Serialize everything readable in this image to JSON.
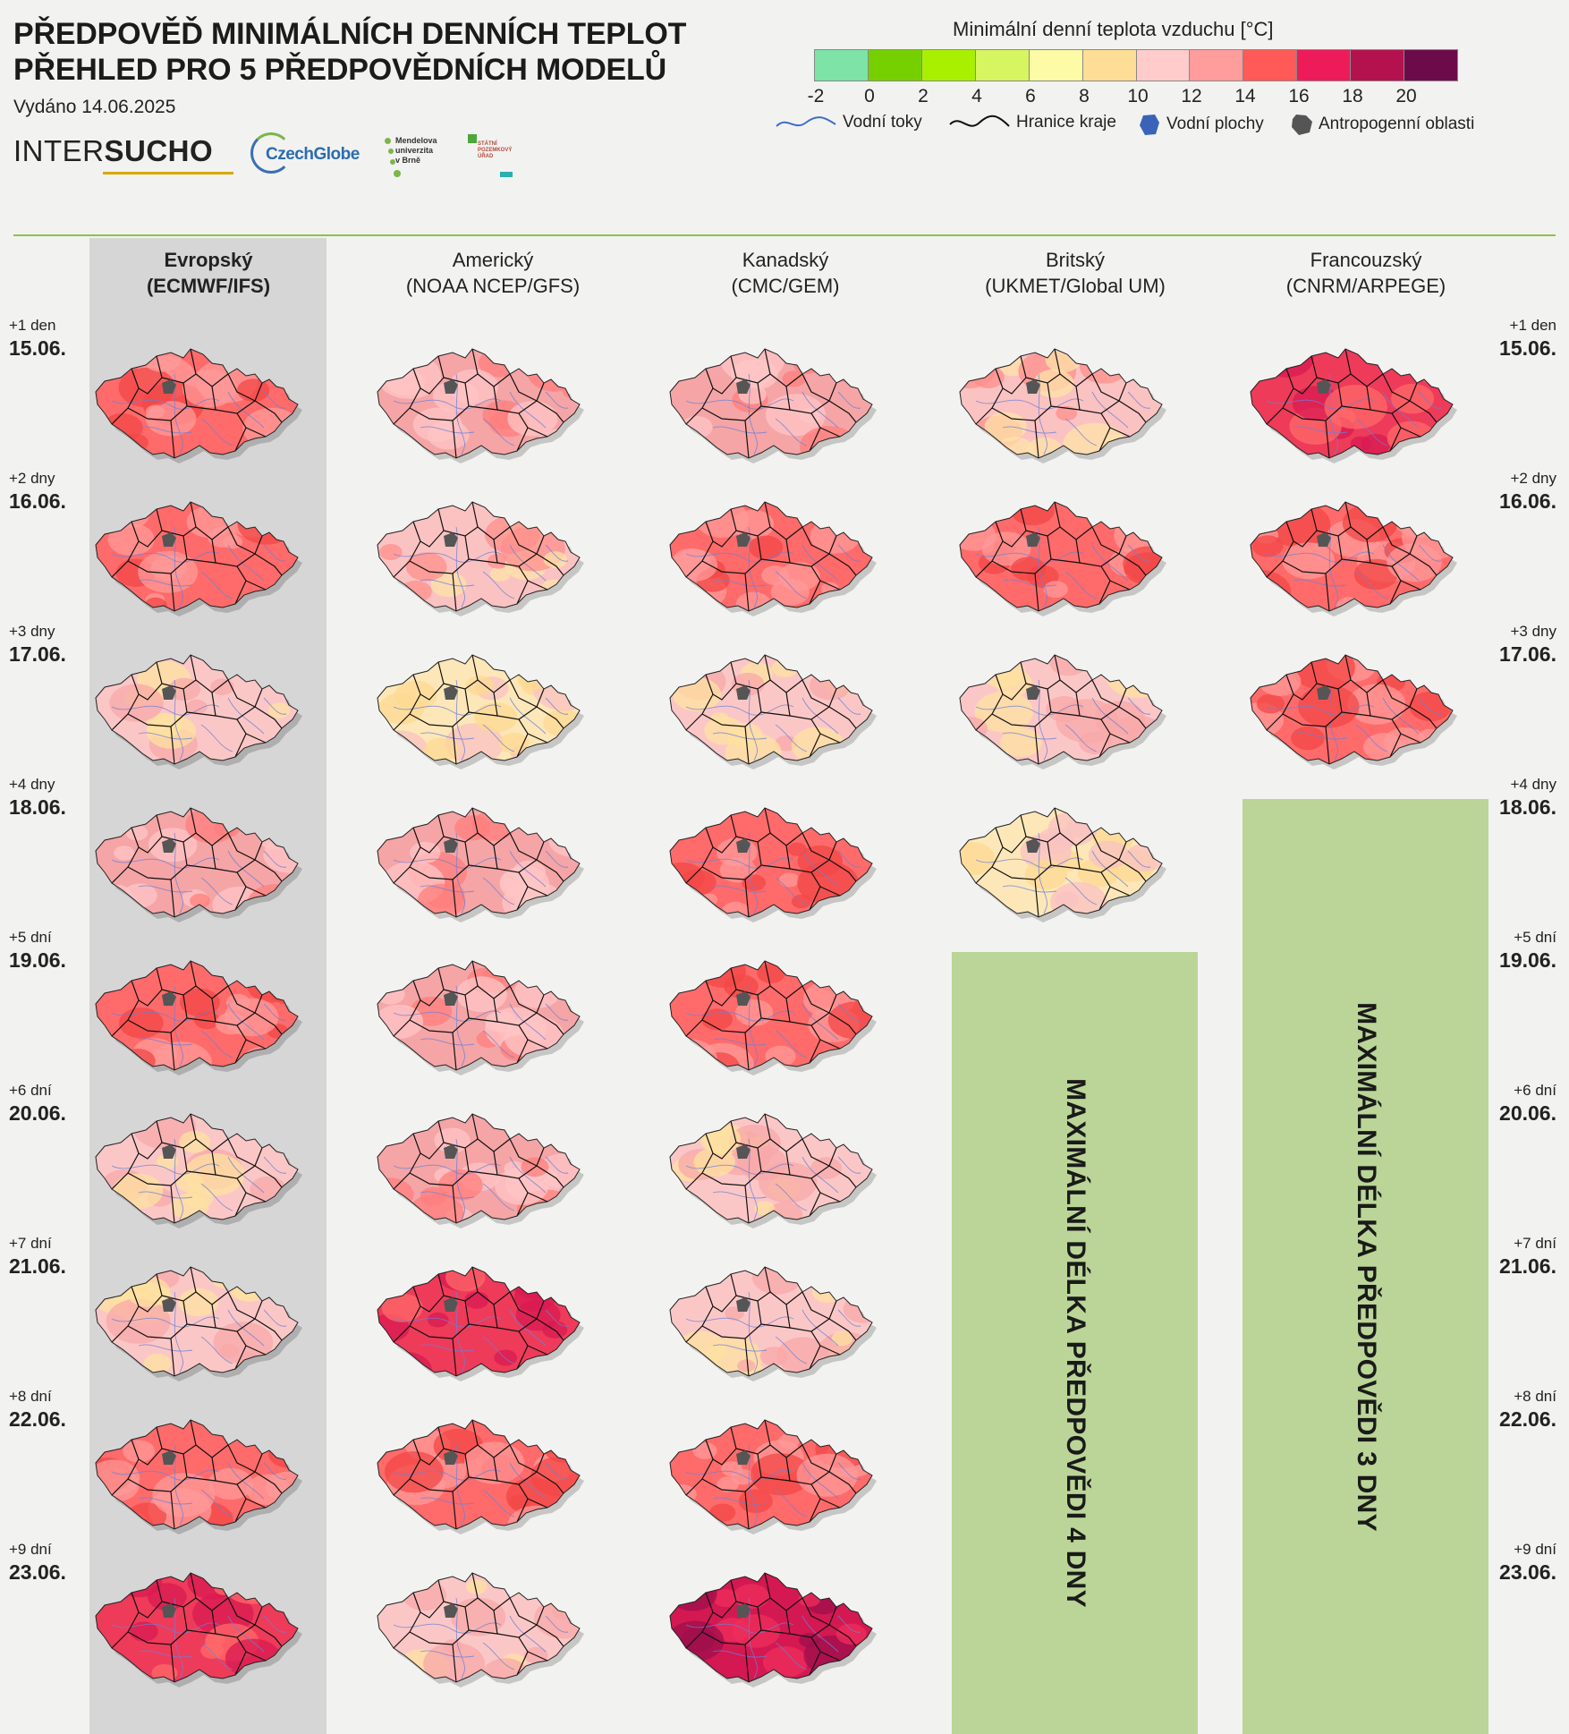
{
  "title_line1": "PŘEDPOVĚĎ MINIMÁLNÍCH DENNÍCH TEPLOT",
  "title_line2": "PŘEHLED PRO 5 PŘEDPOVĚDNÍCH MODELŮ",
  "issued": "Vydáno 14.06.2025",
  "logos": {
    "intersucho_a": "INTER",
    "intersucho_b": "SUCHO",
    "czechglobe": "CzechGlobe",
    "mendel": "Mendelova\nuniverzita\nv Brně",
    "spu": "STÁTNÍ\nPOZEMKOVÝ\nÚŘAD"
  },
  "legend": {
    "title": "Minimální denní teplota vzduchu [°C]",
    "colors": [
      "#7de3a6",
      "#76d000",
      "#a8f000",
      "#d6f560",
      "#fdfba6",
      "#fedd96",
      "#ffcccb",
      "#ff9c9c",
      "#ff5a57",
      "#ee1b5a",
      "#b4124e",
      "#6c0b4a"
    ],
    "ticks": [
      "-2",
      "0",
      "2",
      "4",
      "6",
      "8",
      "10",
      "12",
      "14",
      "16",
      "18",
      "20"
    ],
    "items": [
      {
        "label": "Vodní toky",
        "icon": "river-icon"
      },
      {
        "label": "Hranice kraje",
        "icon": "border-icon"
      },
      {
        "label": "Vodní plochy",
        "icon": "water-body-icon"
      },
      {
        "label": "Antropogenní oblasti",
        "icon": "urban-area-icon"
      }
    ]
  },
  "models": [
    {
      "name": "Evropský",
      "code": "(ECMWF/IFS)",
      "highlighted": true
    },
    {
      "name": "Americký",
      "code": "(NOAA NCEP/GFS)",
      "highlighted": false
    },
    {
      "name": "Kanadský",
      "code": "(CMC/GEM)",
      "highlighted": false
    },
    {
      "name": "Britský",
      "code": "(UKMET/Global UM)",
      "highlighted": false
    },
    {
      "name": "Francouzský",
      "code": "(CNRM/ARPEGE)",
      "highlighted": false
    }
  ],
  "days": [
    {
      "lead": "+1 den",
      "date": "15.06."
    },
    {
      "lead": "+2 dny",
      "date": "16.06."
    },
    {
      "lead": "+3 dny",
      "date": "17.06."
    },
    {
      "lead": "+4 dny",
      "date": "18.06."
    },
    {
      "lead": "+5 dní",
      "date": "19.06."
    },
    {
      "lead": "+6 dní",
      "date": "20.06."
    },
    {
      "lead": "+7 dní",
      "date": "21.06."
    },
    {
      "lead": "+8 dní",
      "date": "22.06."
    },
    {
      "lead": "+9 dní",
      "date": "23.06."
    }
  ],
  "map_palettes": {
    "warm": {
      "base": "#f5a5a6",
      "a": "#ff7f7c",
      "b": "#ffc5c5"
    },
    "hot": {
      "base": "#ff6b6a",
      "a": "#f24747",
      "b": "#ff9a9a"
    },
    "cool": {
      "base": "#fbc7c6",
      "a": "#fee1a0",
      "b": "#f8a8a8"
    },
    "yellow": {
      "base": "#fde7b8",
      "a": "#fdd993",
      "b": "#f9c1c1"
    },
    "veryhot": {
      "base": "#ee3b59",
      "a": "#d81b52",
      "b": "#ff6a6a"
    },
    "extreme": {
      "base": "#d41852",
      "a": "#9e0f4c",
      "b": "#ee2d5b"
    },
    "mixed": {
      "base": "#fbc2c2",
      "a": "#ff8f8c",
      "b": "#fde3a8"
    }
  },
  "grid": [
    [
      "hot",
      "warm",
      "warm",
      "mixed",
      "veryhot"
    ],
    [
      "hot",
      "mixed",
      "hot",
      "hot",
      "hot"
    ],
    [
      "cool",
      "yellow",
      "cool",
      "cool",
      "hot"
    ],
    [
      "warm",
      "warm",
      "hot",
      "yellow",
      null
    ],
    [
      "hot",
      "warm",
      "hot",
      null,
      null
    ],
    [
      "cool",
      "warm",
      "cool",
      null,
      null
    ],
    [
      "cool",
      "veryhot",
      "cool",
      null,
      null
    ],
    [
      "hot",
      "hot",
      "hot",
      null,
      null
    ],
    [
      "veryhot",
      "cool",
      "extreme",
      null,
      null
    ]
  ],
  "notices": {
    "uk": "MAXIMÁLNÍ DÉLKA PŘEDPOVĚDI 4 DNY",
    "fr": "MAXIMÁLNÍ DÉLKA PŘEDPOVĚDI 3 DNY"
  }
}
